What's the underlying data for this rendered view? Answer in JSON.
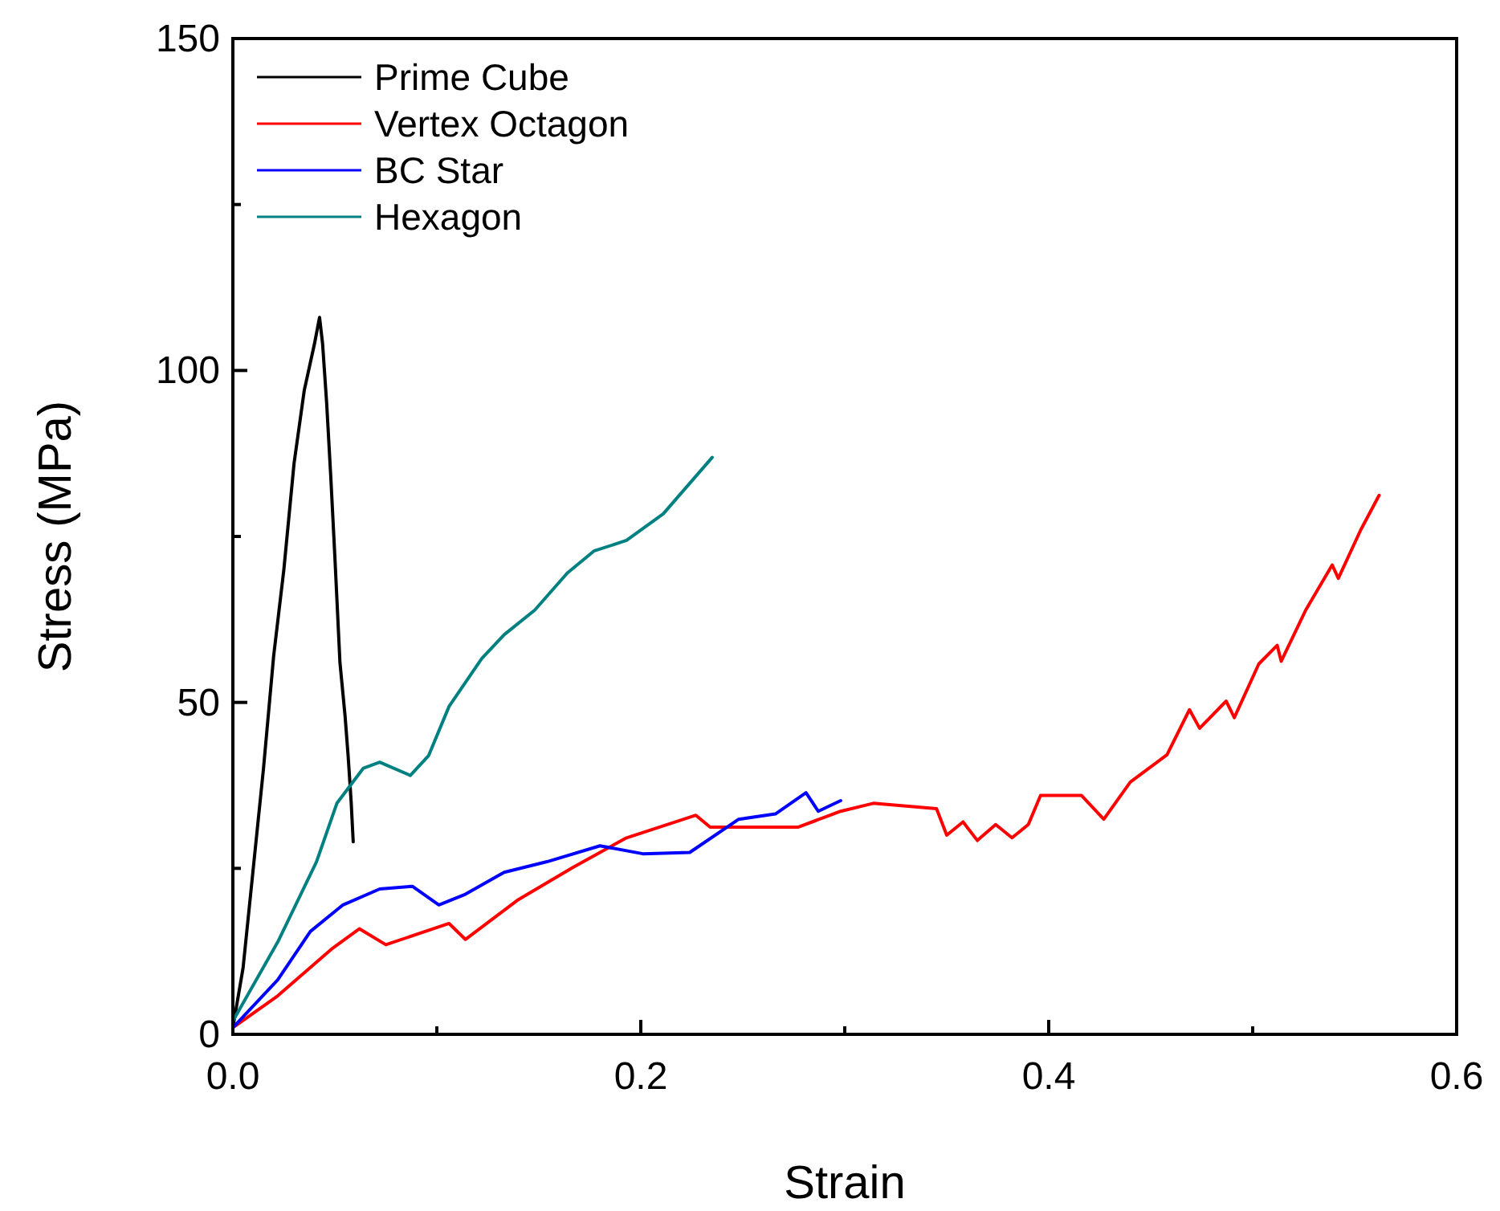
{
  "chart_data": {
    "type": "line",
    "xlabel": "Strain",
    "ylabel": "Stress (MPa)",
    "xlim": [
      0,
      0.6
    ],
    "xticks": [
      {
        "value": 0,
        "label": "0.0"
      },
      {
        "value": 0.1,
        "label": null
      },
      {
        "value": 0.2,
        "label": "0.2"
      },
      {
        "value": 0.3,
        "label": null
      },
      {
        "value": 0.4,
        "label": "0.4"
      },
      {
        "value": 0.5,
        "label": null
      },
      {
        "value": 0.6,
        "label": "0.6"
      }
    ],
    "ylim": [
      0,
      150
    ],
    "yticks": [
      0,
      {
        "value": 25,
        "label": null
      },
      50,
      {
        "value": 75,
        "label": null
      },
      100,
      {
        "value": 125,
        "label": null
      },
      150
    ],
    "grid": false,
    "legend": "top left",
    "series": [
      {
        "name": "Prime Cube",
        "color": "#000000",
        "x": [
          0,
          0.005,
          0.01,
          0.015,
          0.02,
          0.025,
          0.03,
          0.035,
          0.04,
          0.0425,
          0.044,
          0.046,
          0.048,
          0.05,
          0.0525,
          0.055,
          0.0565,
          0.058,
          0.059
        ],
        "values": [
          1,
          10,
          25,
          40,
          57,
          70,
          86,
          97,
          104,
          108,
          104,
          95,
          84,
          72,
          56,
          48,
          42,
          35,
          29
        ]
      },
      {
        "name": "Vertex Octagon",
        "color": "#ff0000",
        "x": [
          0,
          0.022,
          0.049,
          0.062,
          0.075,
          0.106,
          0.114,
          0.14,
          0.167,
          0.193,
          0.227,
          0.234,
          0.277,
          0.298,
          0.314,
          0.345,
          0.35,
          0.358,
          0.365,
          0.374,
          0.382,
          0.39,
          0.396,
          0.416,
          0.427,
          0.44,
          0.458,
          0.469,
          0.474,
          0.487,
          0.491,
          0.503,
          0.512,
          0.514,
          0.526,
          0.539,
          0.542,
          0.553,
          0.562
        ],
        "values": [
          1,
          5.8,
          13,
          15.9,
          13.5,
          16.7,
          14.3,
          20.3,
          25.2,
          29.6,
          33,
          31.2,
          31.2,
          33.6,
          34.8,
          34,
          30,
          32,
          29.2,
          31.6,
          29.6,
          31.6,
          36,
          36,
          32.4,
          38,
          42.1,
          48.9,
          46.1,
          50.2,
          47.7,
          55.8,
          58.6,
          56.2,
          63.9,
          70.7,
          68.7,
          76,
          81.2
        ]
      },
      {
        "name": "BC Star",
        "color": "#0000ff",
        "x": [
          0,
          0.022,
          0.038,
          0.054,
          0.072,
          0.088,
          0.101,
          0.114,
          0.133,
          0.154,
          0.18,
          0.201,
          0.224,
          0.248,
          0.266,
          0.281,
          0.287,
          0.298
        ],
        "values": [
          1,
          8.2,
          15.5,
          19.5,
          21.9,
          22.3,
          19.5,
          21.1,
          24.4,
          26,
          28.4,
          27.2,
          27.4,
          32.4,
          33.2,
          36.4,
          33.6,
          35.2
        ]
      },
      {
        "name": "Hexagon",
        "color": "#008080",
        "x": [
          0,
          0.022,
          0.041,
          0.051,
          0.064,
          0.072,
          0.087,
          0.096,
          0.106,
          0.122,
          0.133,
          0.148,
          0.164,
          0.177,
          0.193,
          0.211,
          0.235
        ],
        "values": [
          2,
          13.9,
          26,
          34.8,
          40.1,
          41,
          39,
          42,
          49.4,
          56.6,
          60.2,
          63.9,
          69.5,
          72.8,
          74.4,
          78.4,
          86.9
        ]
      }
    ]
  }
}
